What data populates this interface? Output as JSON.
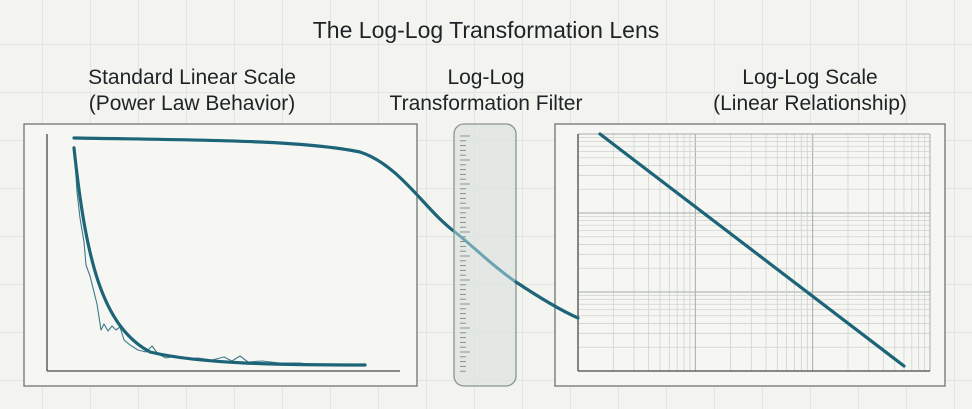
{
  "title": "The Log-Log Transformation Lens",
  "panels": {
    "left": {
      "line1": "Standard Linear Scale",
      "line2": "(Power Law Behavior)"
    },
    "filter": {
      "line1": "Log-Log",
      "line2": "Transformation Filter"
    },
    "right": {
      "line1": "Log-Log Scale",
      "line2": "(Linear Relationship)"
    }
  },
  "colors": {
    "curve": "#1d6478",
    "frame": "#6f7572",
    "background": "#f3f4ef",
    "lens": "#dde3e0"
  }
}
